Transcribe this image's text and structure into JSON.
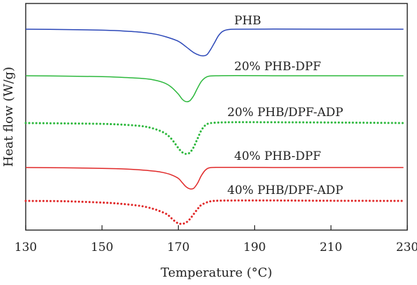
{
  "chart_data": {
    "type": "line",
    "title": "",
    "xlabel": "Temperature (°C)",
    "ylabel": "Heat flow (W/g)",
    "xlim": [
      130,
      230
    ],
    "xticks": [
      130,
      150,
      170,
      190,
      210,
      230
    ],
    "y_ticks_shown": false,
    "grid": false,
    "legend": "inline labels above each curve",
    "series": [
      {
        "name": "PHB",
        "color": "#2b47b8",
        "style": "solid",
        "x": [
          130,
          140,
          150,
          155,
          160,
          164,
          167,
          170,
          172,
          174,
          175.5,
          176.5,
          177.5,
          178.5,
          179.5,
          180.5,
          181.5,
          183,
          186,
          195,
          210,
          229
        ],
        "y": [
          0,
          -0.04,
          -0.12,
          -0.2,
          -0.35,
          -0.6,
          -0.95,
          -1.45,
          -2.1,
          -2.8,
          -3.12,
          -3.2,
          -3.05,
          -2.4,
          -1.6,
          -0.8,
          -0.3,
          -0.05,
          0,
          0.02,
          0,
          0
        ]
      },
      {
        "name": "20% PHB-DPF",
        "color": "#2db83d",
        "style": "solid",
        "x": [
          130,
          140,
          150,
          155,
          160,
          163,
          166,
          168,
          170,
          171,
          172,
          173,
          174,
          175,
          176,
          177,
          178,
          180,
          185,
          200,
          215,
          229
        ],
        "y": [
          0,
          -0.04,
          -0.1,
          -0.18,
          -0.3,
          -0.45,
          -0.8,
          -1.3,
          -2.2,
          -2.8,
          -3.1,
          -3.0,
          -2.4,
          -1.5,
          -0.7,
          -0.25,
          -0.05,
          0,
          0.02,
          0,
          0,
          0
        ]
      },
      {
        "name": "20% PHB/DPF-ADP",
        "color": "#2db83d",
        "style": "dotted",
        "x": [
          130,
          140,
          150,
          155,
          160,
          163,
          166,
          168,
          170,
          171,
          172,
          173,
          174,
          175,
          176,
          177,
          178,
          180,
          185,
          200,
          215,
          229
        ],
        "y": [
          0,
          -0.04,
          -0.1,
          -0.18,
          -0.35,
          -0.6,
          -1.1,
          -1.8,
          -3.0,
          -3.5,
          -3.7,
          -3.55,
          -2.9,
          -1.9,
          -0.9,
          -0.3,
          -0.05,
          0.05,
          0.1,
          0.08,
          0.05,
          0
        ]
      },
      {
        "name": "40% PHB-DPF",
        "color": "#e02828",
        "style": "solid",
        "x": [
          130,
          140,
          150,
          155,
          160,
          164,
          166,
          168,
          170,
          171,
          172,
          173,
          174,
          175,
          176,
          177,
          178,
          180,
          185,
          200,
          215,
          229
        ],
        "y": [
          0,
          -0.03,
          -0.1,
          -0.16,
          -0.28,
          -0.45,
          -0.6,
          -0.85,
          -1.3,
          -1.8,
          -2.3,
          -2.55,
          -2.5,
          -1.9,
          -1.0,
          -0.35,
          -0.05,
          0.02,
          0.02,
          0,
          0,
          0
        ]
      },
      {
        "name": "40% PHB/DPF-ADP",
        "color": "#e02828",
        "style": "dotted",
        "x": [
          130,
          140,
          150,
          155,
          160,
          163,
          165,
          167,
          168,
          169,
          170,
          171,
          172,
          173,
          174,
          175,
          176,
          178,
          180,
          185,
          195,
          210,
          229
        ],
        "y": [
          0,
          -0.04,
          -0.2,
          -0.35,
          -0.6,
          -0.9,
          -1.2,
          -1.6,
          -2.0,
          -2.4,
          -2.7,
          -2.75,
          -2.6,
          -2.2,
          -1.6,
          -1.0,
          -0.5,
          -0.1,
          0.02,
          0.05,
          0.05,
          0.02,
          0
        ]
      }
    ]
  }
}
